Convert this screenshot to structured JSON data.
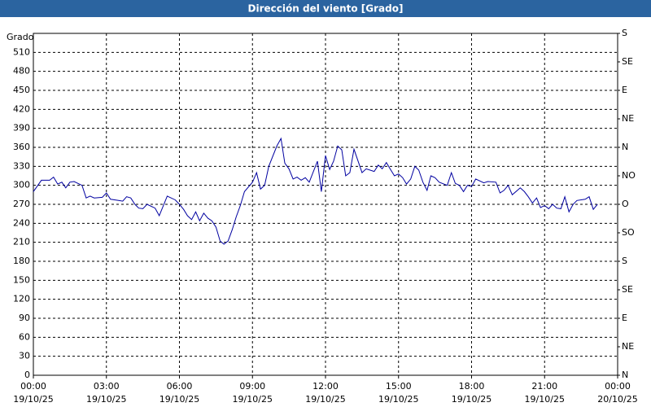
{
  "chart_data": {
    "type": "line",
    "title": "Dirección del viento [Grado]",
    "y_label": "Grado",
    "xlim": [
      0,
      24
    ],
    "xticks": [
      {
        "value": 0,
        "label": "00:00",
        "date": "19/10/25"
      },
      {
        "value": 3,
        "label": "03:00",
        "date": "19/10/25"
      },
      {
        "value": 6,
        "label": "06:00",
        "date": "19/10/25"
      },
      {
        "value": 9,
        "label": "09:00",
        "date": "19/10/25"
      },
      {
        "value": 12,
        "label": "12:00",
        "date": "19/10/25"
      },
      {
        "value": 15,
        "label": "15:00",
        "date": "19/10/25"
      },
      {
        "value": 18,
        "label": "18:00",
        "date": "19/10/25"
      },
      {
        "value": 21,
        "label": "21:00",
        "date": "19/10/25"
      },
      {
        "value": 24,
        "label": "00:00",
        "date": "20/10/25"
      }
    ],
    "ylim": [
      0,
      540
    ],
    "yticks": [
      0,
      30,
      60,
      90,
      120,
      150,
      180,
      210,
      240,
      270,
      300,
      330,
      360,
      390,
      420,
      450,
      480,
      510
    ],
    "y2lim": [
      0,
      540
    ],
    "y2ticks": [
      {
        "value": 0,
        "label": "N"
      },
      {
        "value": 45,
        "label": "NE"
      },
      {
        "value": 90,
        "label": "E"
      },
      {
        "value": 135,
        "label": "SE"
      },
      {
        "value": 180,
        "label": "S"
      },
      {
        "value": 225,
        "label": "SO"
      },
      {
        "value": 270,
        "label": "O"
      },
      {
        "value": 315,
        "label": "NO"
      },
      {
        "value": 360,
        "label": "N"
      },
      {
        "value": 405,
        "label": "NE"
      },
      {
        "value": 450,
        "label": "E"
      },
      {
        "value": 495,
        "label": "SE"
      },
      {
        "value": 540,
        "label": "S"
      }
    ],
    "grid": true,
    "series": [
      {
        "color": "#0000a0",
        "x": [
          0,
          0.33,
          0.67,
          0.83,
          1,
          1.17,
          1.33,
          1.5,
          1.67,
          2,
          2.17,
          2.33,
          2.5,
          2.83,
          3,
          3.17,
          3.5,
          3.67,
          3.83,
          4,
          4.17,
          4.33,
          4.5,
          4.67,
          5,
          5.17,
          5.5,
          5.83,
          6,
          6.17,
          6.33,
          6.5,
          6.67,
          6.83,
          7,
          7.17,
          7.33,
          7.5,
          7.67,
          7.83,
          8,
          8.17,
          8.33,
          8.5,
          8.67,
          9,
          9.17,
          9.33,
          9.5,
          9.67,
          10,
          10.17,
          10.33,
          10.5,
          10.67,
          10.83,
          11,
          11.17,
          11.33,
          11.67,
          11.83,
          12,
          12.17,
          12.33,
          12.5,
          12.67,
          12.83,
          13,
          13.17,
          13.5,
          13.67,
          14,
          14.17,
          14.33,
          14.5,
          14.67,
          14.83,
          15,
          15.17,
          15.33,
          15.5,
          15.67,
          15.83,
          16,
          16.17,
          16.33,
          16.5,
          16.67,
          17,
          17.17,
          17.33,
          17.5,
          17.67,
          17.83,
          18,
          18.17,
          18.5,
          18.67,
          19,
          19.17,
          19.33,
          19.5,
          19.67,
          20,
          20.17,
          20.33,
          20.5,
          20.67,
          20.83,
          21,
          21.17,
          21.33,
          21.5,
          21.67,
          21.83,
          22,
          22.17,
          22.33,
          22.67,
          22.83,
          23,
          23.17
        ],
        "values": [
          290,
          308,
          308,
          313,
          302,
          305,
          296,
          305,
          306,
          300,
          280,
          283,
          280,
          281,
          288,
          278,
          276,
          275,
          282,
          280,
          270,
          264,
          263,
          270,
          264,
          252,
          283,
          277,
          270,
          262,
          252,
          246,
          258,
          244,
          256,
          248,
          244,
          234,
          212,
          207,
          212,
          230,
          250,
          268,
          290,
          305,
          320,
          294,
          300,
          330,
          362,
          374,
          335,
          326,
          310,
          313,
          308,
          312,
          305,
          338,
          290,
          347,
          325,
          338,
          362,
          356,
          315,
          320,
          357,
          320,
          326,
          322,
          332,
          326,
          336,
          325,
          315,
          318,
          312,
          302,
          310,
          330,
          324,
          305,
          292,
          315,
          312,
          305,
          300,
          320,
          303,
          300,
          290,
          300,
          298,
          310,
          304,
          306,
          305,
          288,
          292,
          300,
          285,
          296,
          290,
          282,
          272,
          280,
          265,
          268,
          263,
          270,
          264,
          263,
          282,
          258,
          270,
          276,
          278,
          282,
          262,
          270
        ]
      }
    ]
  }
}
